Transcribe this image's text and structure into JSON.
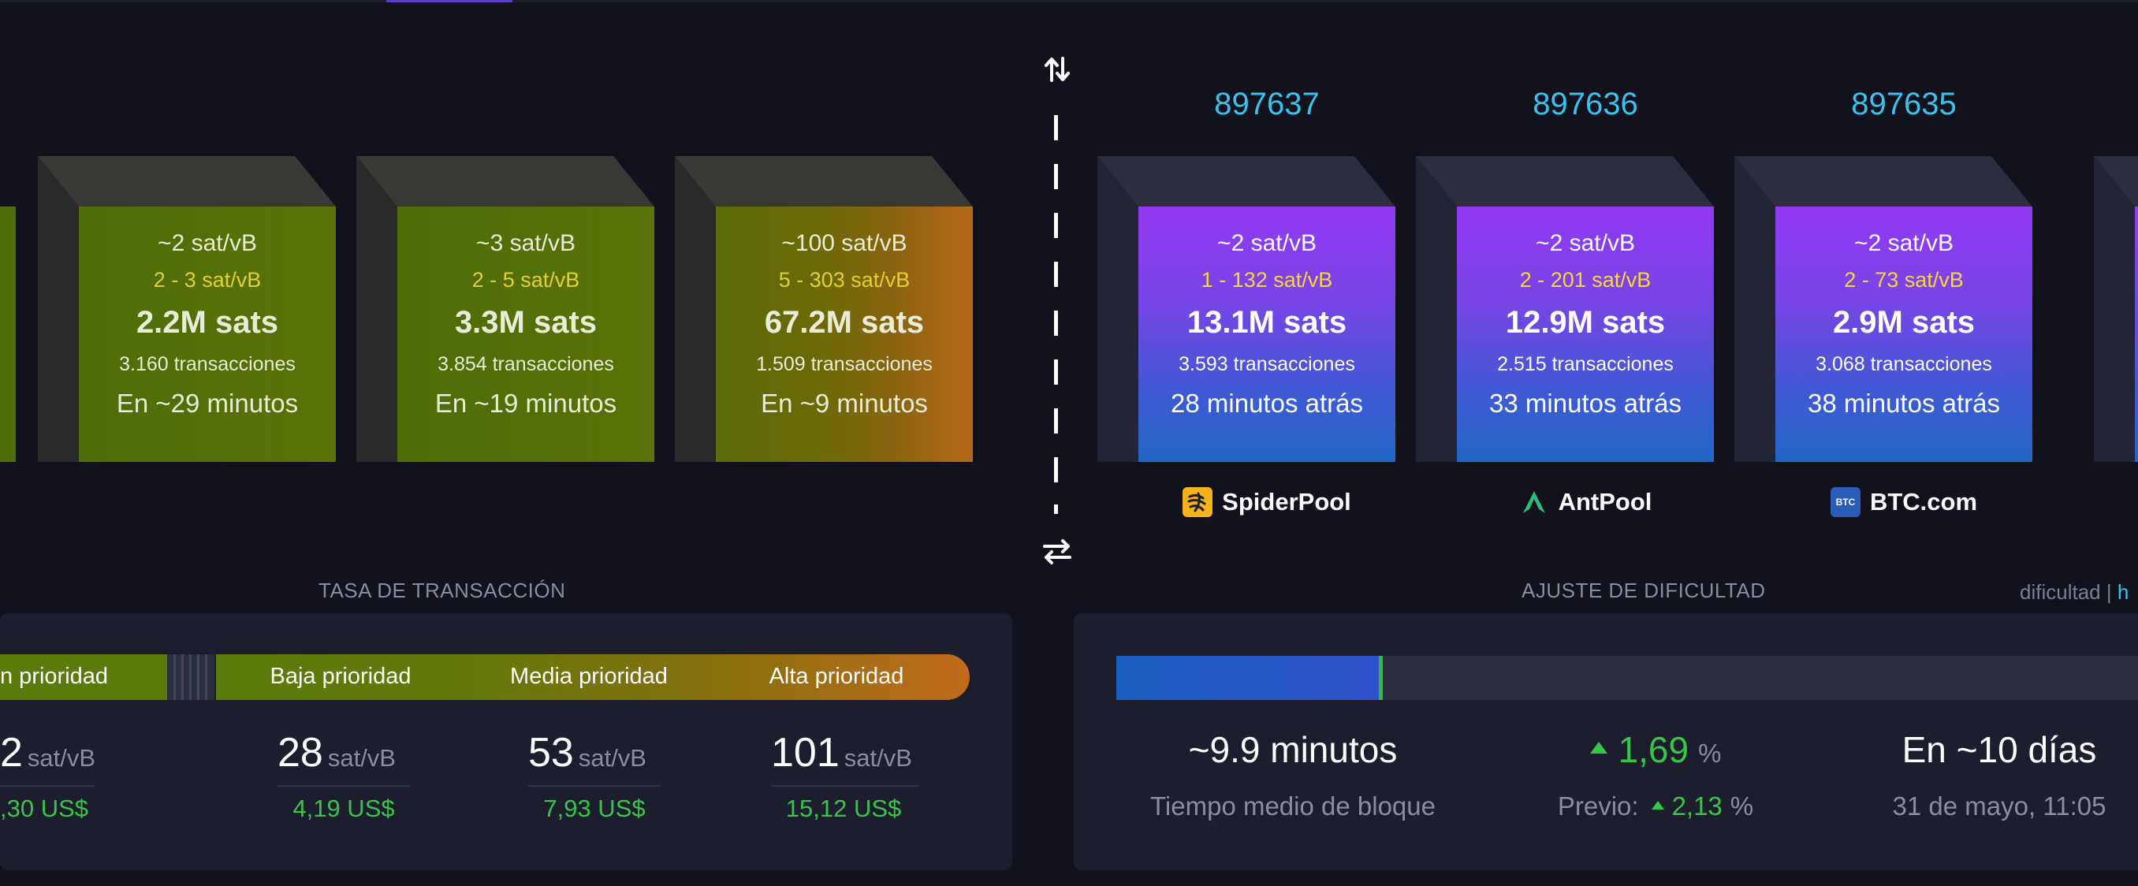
{
  "mempool_blocks": [
    {
      "median_fee": "~2 sat/vB",
      "fee_range": "2 - 3 sat/vB",
      "total_size": "2.2M sats",
      "tx_count": "3.160 transacciones",
      "eta": "En ~29 minutos"
    },
    {
      "median_fee": "~3 sat/vB",
      "fee_range": "2 - 5 sat/vB",
      "total_size": "3.3M sats",
      "tx_count": "3.854 transacciones",
      "eta": "En ~19 minutos"
    },
    {
      "median_fee": "~100 sat/vB",
      "fee_range": "5 - 303 sat/vB",
      "total_size": "67.2M sats",
      "tx_count": "1.509 transacciones",
      "eta": "En ~9 minutos"
    }
  ],
  "mined_blocks": [
    {
      "height": "897637",
      "median_fee": "~2 sat/vB",
      "fee_range": "1 - 132 sat/vB",
      "total_size": "13.1M sats",
      "tx_count": "3.593 transacciones",
      "age": "28 minutos atrás",
      "pool": "SpiderPool",
      "pool_icon": "spiderpool-logo"
    },
    {
      "height": "897636",
      "median_fee": "~2 sat/vB",
      "fee_range": "2 - 201 sat/vB",
      "total_size": "12.9M sats",
      "tx_count": "2.515 transacciones",
      "age": "33 minutos atrás",
      "pool": "AntPool",
      "pool_icon": "antpool-logo"
    },
    {
      "height": "897635",
      "median_fee": "~2 sat/vB",
      "fee_range": "2 - 73 sat/vB",
      "total_size": "2.9M sats",
      "tx_count": "3.068 transacciones",
      "age": "38 minutos atrás",
      "pool": "BTC.com",
      "pool_icon": "btccom-logo"
    }
  ],
  "fees": {
    "title": "TASA DE TRANSACCIÓN",
    "priorities": [
      "n prioridad",
      "Baja prioridad",
      "Media prioridad",
      "Alta prioridad"
    ],
    "values": [
      {
        "num": "2",
        "unit": "sat/vB",
        "usd": ",30 US$"
      },
      {
        "num": "28",
        "unit": "sat/vB",
        "usd": "4,19 US$"
      },
      {
        "num": "53",
        "unit": "sat/vB",
        "usd": "7,93 US$"
      },
      {
        "num": "101",
        "unit": "sat/vB",
        "usd": "15,12 US$"
      }
    ]
  },
  "difficulty": {
    "title": "AJUSTE DE DIFICULTAD",
    "link_text": "dificultad",
    "link_sep": " | ",
    "link_partial": "h",
    "progress": 0.26,
    "avg_block_time": "~9.9 minutos",
    "avg_block_time_label": "Tiempo medio de bloque",
    "change": "1,69",
    "change_unit": "%",
    "previous_label": "Previo:",
    "previous_value": "2,13",
    "previous_unit": "%",
    "eta": "En ~10 días",
    "eta_date": "31 de mayo, 11:05"
  },
  "colors": {
    "accent_cyan": "#39c2f0",
    "fee_green": "#37c548",
    "range_yellow": "#f7d53c",
    "mined_purple": "#9339f4",
    "mined_blue": "#1f67c5"
  }
}
